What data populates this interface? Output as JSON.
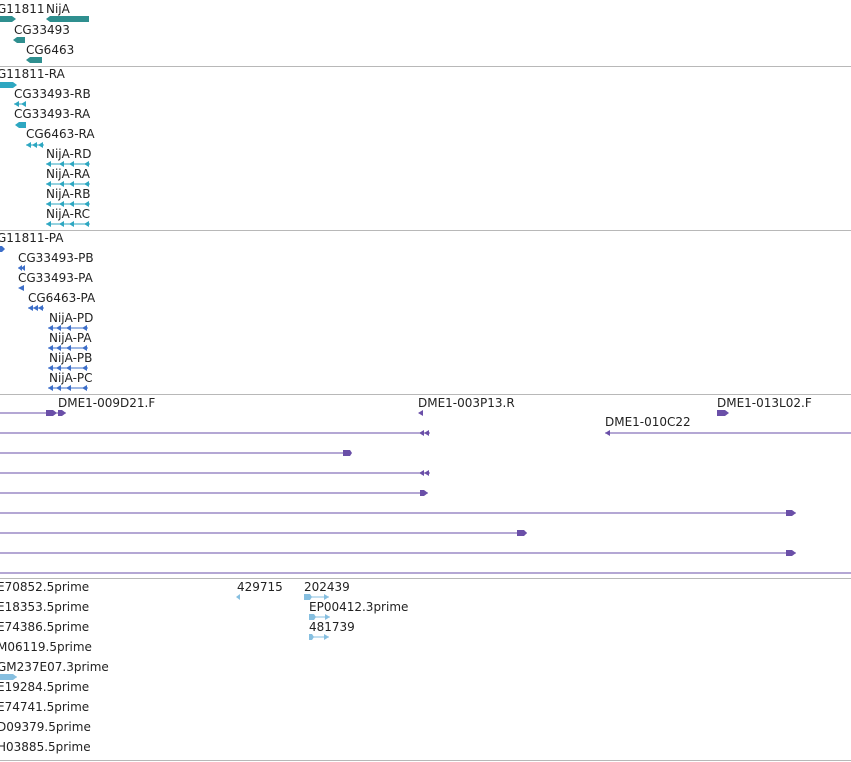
{
  "colors": {
    "gene": "#2f8f8f",
    "transcript": "#2ea7c1",
    "protein": "#3d6fc9",
    "bac": "#6a4fa8",
    "est": "#86bfe0",
    "separator": "#b8b8b8"
  },
  "tracks": {
    "genes": {
      "features": [
        {
          "label": "G11811",
          "strand": "+"
        },
        {
          "label": "NijA",
          "strand": "-"
        },
        {
          "label": "CG33493",
          "strand": "-"
        },
        {
          "label": "CG6463",
          "strand": "-"
        }
      ]
    },
    "transcripts": {
      "features": [
        {
          "label": "G11811-RA",
          "strand": "+"
        },
        {
          "label": "CG33493-RB",
          "strand": "-"
        },
        {
          "label": "CG33493-RA",
          "strand": "-"
        },
        {
          "label": "CG6463-RA",
          "strand": "-"
        },
        {
          "label": "NijA-RD",
          "strand": "-"
        },
        {
          "label": "NijA-RA",
          "strand": "-"
        },
        {
          "label": "NijA-RB",
          "strand": "-"
        },
        {
          "label": "NijA-RC",
          "strand": "-"
        }
      ]
    },
    "proteins": {
      "features": [
        {
          "label": "G11811-PA",
          "strand": "+"
        },
        {
          "label": "CG33493-PB",
          "strand": "-"
        },
        {
          "label": "CG33493-PA",
          "strand": "-"
        },
        {
          "label": "CG6463-PA",
          "strand": "-"
        },
        {
          "label": "NijA-PD",
          "strand": "-"
        },
        {
          "label": "NijA-PA",
          "strand": "-"
        },
        {
          "label": "NijA-PB",
          "strand": "-"
        },
        {
          "label": "NijA-PC",
          "strand": "-"
        }
      ]
    },
    "bac_ends": {
      "features": [
        {
          "label": "DME1-009D21.F",
          "strand": "+"
        },
        {
          "label": "DME1-003P13.R",
          "strand": "-"
        },
        {
          "label": "DME1-013L02.F",
          "strand": "+"
        },
        {
          "label": "DME1-010C22",
          "strand": "-"
        }
      ]
    },
    "ests": {
      "features": [
        {
          "label": "E70852.5prime"
        },
        {
          "label": "429715"
        },
        {
          "label": "202439"
        },
        {
          "label": "E18353.5prime"
        },
        {
          "label": "EP00412.3prime"
        },
        {
          "label": "E74386.5prime"
        },
        {
          "label": "481739"
        },
        {
          "label": "M06119.5prime"
        },
        {
          "label": "GM237E07.3prime"
        },
        {
          "label": "E19284.5prime"
        },
        {
          "label": "E74741.5prime"
        },
        {
          "label": "D09379.5prime"
        },
        {
          "label": "H03885.5prime"
        }
      ]
    }
  }
}
